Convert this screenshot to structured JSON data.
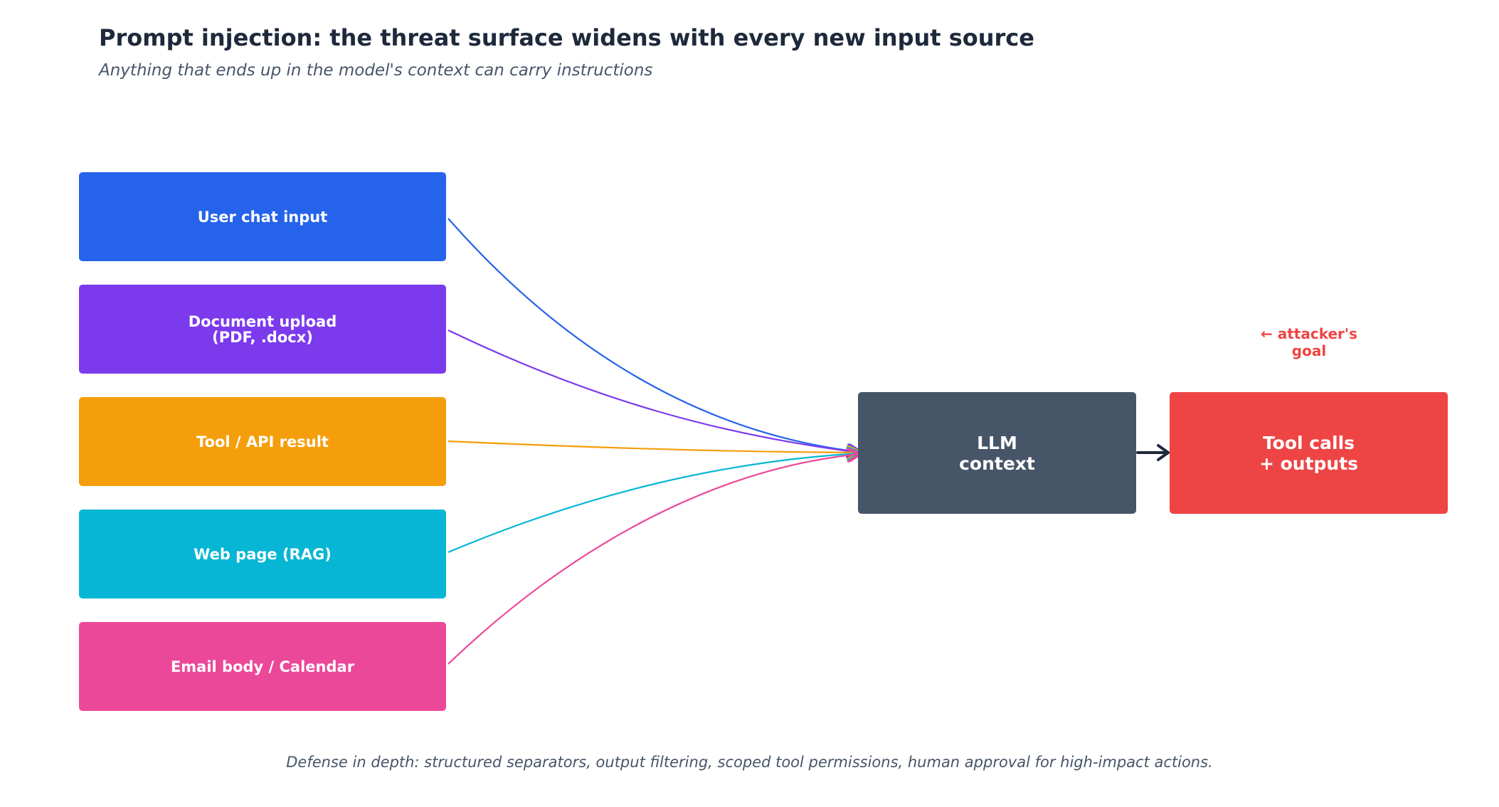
{
  "title": "Prompt injection: the threat surface widens with every new input source",
  "subtitle": "Anything that ends up in the model's context can carry instructions",
  "sources": [
    {
      "label": "User chat input",
      "color": "#2563eb"
    },
    {
      "label": "Document upload\n(PDF, .docx)",
      "color": "#7c3aed"
    },
    {
      "label": "Tool / API result",
      "color": "#f59e0b"
    },
    {
      "label": "Web page (RAG)",
      "color": "#06b6d4"
    },
    {
      "label": "Email body / Calendar",
      "color": "#ec4899"
    }
  ],
  "llm": {
    "label": "LLM\ncontext",
    "color": "#475569"
  },
  "outputs": {
    "label": "Tool calls\n+ outputs",
    "color": "#ef4444"
  },
  "attacker_note": "← attacker's\ngoal",
  "footer": "Defense in depth: structured separators, output filtering, scoped tool permissions, human approval for high-impact actions.",
  "edge_color": "#1e293b"
}
